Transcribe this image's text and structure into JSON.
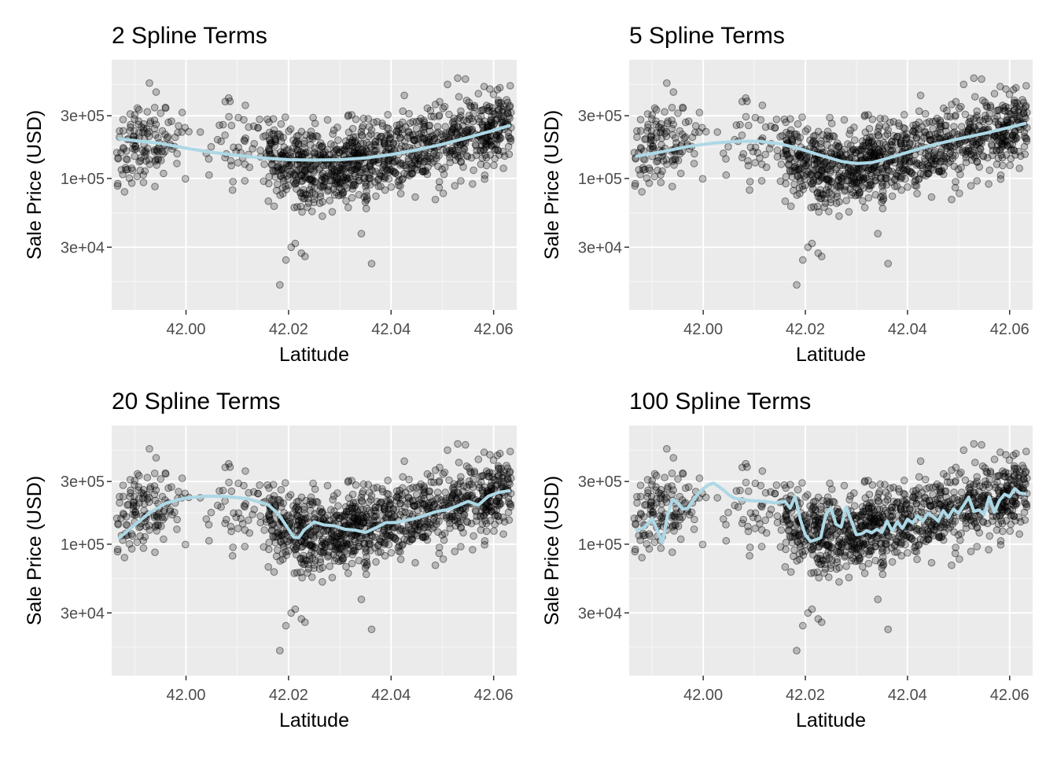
{
  "chart_data": [
    {
      "type": "scatter",
      "title": "2 Spline Terms",
      "xlabel": "Latitude",
      "ylabel": "Sale Price (USD)",
      "xlim": [
        41.9855,
        42.0645
      ],
      "ylim": [
        10000,
        800000
      ],
      "y_scale": "log10",
      "x_ticks": [
        42.0,
        42.02,
        42.04,
        42.06
      ],
      "x_tick_labels": [
        "42.00",
        "42.02",
        "42.04",
        "42.06"
      ],
      "y_ticks": [
        30000,
        100000,
        300000
      ],
      "y_tick_labels": [
        "3e+04",
        "1e+05",
        "3e+05"
      ],
      "grid": true,
      "fit_color": "#add8e6",
      "fit": {
        "x": [
          41.987,
          41.995,
          42.0,
          42.005,
          42.01,
          42.015,
          42.02,
          42.025,
          42.03,
          42.035,
          42.04,
          42.045,
          42.05,
          42.055,
          42.06,
          42.063
        ],
        "y": [
          200000,
          185000,
          170000,
          158000,
          150000,
          143000,
          139000,
          138000,
          139000,
          143000,
          152000,
          165000,
          182000,
          205000,
          232000,
          252000
        ]
      }
    },
    {
      "type": "scatter",
      "title": "5 Spline Terms",
      "xlabel": "Latitude",
      "ylabel": "Sale Price (USD)",
      "xlim": [
        41.9855,
        42.0645
      ],
      "ylim": [
        10000,
        800000
      ],
      "y_scale": "log10",
      "x_ticks": [
        42.0,
        42.02,
        42.04,
        42.06
      ],
      "x_tick_labels": [
        "42.00",
        "42.02",
        "42.04",
        "42.06"
      ],
      "y_ticks": [
        30000,
        100000,
        300000
      ],
      "y_tick_labels": [
        "3e+04",
        "1e+05",
        "3e+05"
      ],
      "grid": true,
      "fit_color": "#add8e6",
      "fit": {
        "x": [
          41.987,
          41.992,
          41.997,
          42.002,
          42.007,
          42.011,
          42.015,
          42.019,
          42.023,
          42.027,
          42.03,
          42.033,
          42.036,
          42.04,
          42.045,
          42.05,
          42.055,
          42.06,
          42.063
        ],
        "y": [
          148000,
          160000,
          175000,
          186000,
          192000,
          192000,
          184000,
          168000,
          150000,
          135000,
          130000,
          132000,
          142000,
          158000,
          180000,
          200000,
          220000,
          245000,
          262000
        ]
      }
    },
    {
      "type": "scatter",
      "title": "20 Spline Terms",
      "xlabel": "Latitude",
      "ylabel": "Sale Price (USD)",
      "xlim": [
        41.9855,
        42.0645
      ],
      "ylim": [
        10000,
        800000
      ],
      "y_scale": "log10",
      "x_ticks": [
        42.0,
        42.02,
        42.04,
        42.06
      ],
      "x_tick_labels": [
        "42.00",
        "42.02",
        "42.04",
        "42.06"
      ],
      "y_ticks": [
        30000,
        100000,
        300000
      ],
      "y_tick_labels": [
        "3e+04",
        "1e+05",
        "3e+05"
      ],
      "grid": true,
      "fit_color": "#add8e6",
      "fit": {
        "x": [
          41.987,
          41.99,
          41.993,
          41.996,
          42.0,
          42.004,
          42.008,
          42.012,
          42.016,
          42.018,
          42.02,
          42.021,
          42.022,
          42.023,
          42.025,
          42.027,
          42.029,
          42.031,
          42.033,
          42.035,
          42.037,
          42.039,
          42.041,
          42.043,
          42.045,
          42.047,
          42.049,
          42.051,
          42.053,
          42.055,
          42.057,
          42.059,
          42.061,
          42.063
        ],
        "y": [
          112000,
          140000,
          175000,
          205000,
          225000,
          232000,
          230000,
          222000,
          200000,
          170000,
          130000,
          113000,
          112000,
          128000,
          148000,
          140000,
          138000,
          130000,
          128000,
          123000,
          133000,
          146000,
          146000,
          152000,
          158000,
          168000,
          178000,
          183000,
          196000,
          212000,
          198000,
          232000,
          248000,
          255000
        ]
      }
    },
    {
      "type": "scatter",
      "title": "100 Spline Terms",
      "xlabel": "Latitude",
      "ylabel": "Sale Price (USD)",
      "xlim": [
        41.9855,
        42.0645
      ],
      "ylim": [
        10000,
        800000
      ],
      "y_scale": "log10",
      "x_ticks": [
        42.0,
        42.02,
        42.04,
        42.06
      ],
      "x_tick_labels": [
        "42.00",
        "42.02",
        "42.04",
        "42.06"
      ],
      "y_ticks": [
        30000,
        100000,
        300000
      ],
      "y_tick_labels": [
        "3e+04",
        "1e+05",
        "3e+05"
      ],
      "grid": true,
      "fit_color": "#add8e6",
      "fit": {
        "x": [
          41.987,
          41.9885,
          41.99,
          41.991,
          41.992,
          41.993,
          41.994,
          41.995,
          41.996,
          41.997,
          41.998,
          41.999,
          42.0,
          42.001,
          42.002,
          42.003,
          42.004,
          42.005,
          42.006,
          42.007,
          42.008,
          42.009,
          42.01,
          42.012,
          42.014,
          42.016,
          42.017,
          42.018,
          42.019,
          42.02,
          42.021,
          42.022,
          42.023,
          42.024,
          42.025,
          42.026,
          42.027,
          42.028,
          42.029,
          42.03,
          42.031,
          42.032,
          42.033,
          42.034,
          42.035,
          42.036,
          42.037,
          42.038,
          42.039,
          42.04,
          42.041,
          42.042,
          42.043,
          42.044,
          42.045,
          42.046,
          42.047,
          42.048,
          42.049,
          42.05,
          42.051,
          42.052,
          42.053,
          42.054,
          42.055,
          42.056,
          42.057,
          42.058,
          42.059,
          42.06,
          42.061,
          42.062,
          42.063
        ],
        "y": [
          128000,
          134000,
          158000,
          128000,
          102000,
          165000,
          220000,
          205000,
          185000,
          188000,
          215000,
          242000,
          265000,
          282000,
          292000,
          275000,
          258000,
          238000,
          225000,
          220000,
          218000,
          215000,
          214000,
          212000,
          206000,
          212000,
          188000,
          232000,
          155000,
          118000,
          105000,
          108000,
          112000,
          168000,
          188000,
          142000,
          135000,
          192000,
          150000,
          118000,
          120000,
          127000,
          122000,
          130000,
          123000,
          150000,
          126000,
          148000,
          132000,
          155000,
          145000,
          165000,
          150000,
          172000,
          162000,
          150000,
          180000,
          160000,
          185000,
          172000,
          198000,
          228000,
          178000,
          182000,
          168000,
          230000,
          175000,
          215000,
          240000,
          230000,
          265000,
          245000,
          242000
        ]
      }
    }
  ]
}
